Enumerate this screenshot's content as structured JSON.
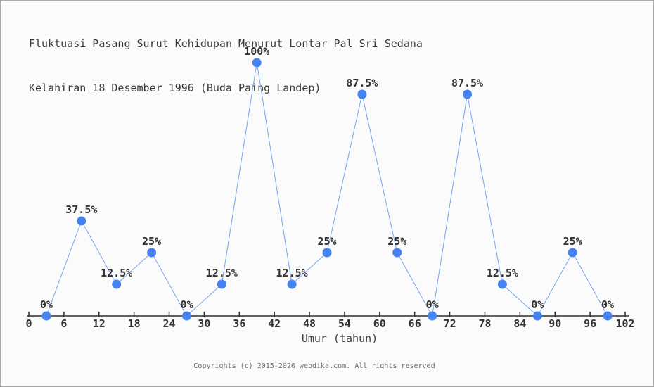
{
  "title": {
    "line1": "Fluktuasi Pasang Surut Kehidupan Menurut Lontar Pal Sri Sedana",
    "line2": "Kelahiran 18 Desember 1996 (Buda Paing Landep)"
  },
  "footer": {
    "copyright": "Copyrights (c) 2015-2026 webdika.com. All rights reserved"
  },
  "chart_data": {
    "type": "line",
    "title": "Fluktuasi Pasang Surut Kehidupan Menurut Lontar Pal Sri Sedana Kelahiran 18 Desember 1996 (Buda Paing Landep)",
    "xlabel": "Umur (tahun)",
    "ylabel": "",
    "x": [
      3,
      9,
      15,
      21,
      27,
      33,
      39,
      45,
      51,
      57,
      63,
      69,
      75,
      81,
      87,
      93,
      99
    ],
    "values": [
      0,
      37.5,
      12.5,
      25,
      0,
      12.5,
      100,
      12.5,
      25,
      87.5,
      25,
      0,
      87.5,
      12.5,
      0,
      25,
      0
    ],
    "point_labels": [
      "0%",
      "37.5%",
      "12.5%",
      "25%",
      "0%",
      "12.5%",
      "100%",
      "12.5%",
      "25%",
      "87.5%",
      "25%",
      "0%",
      "87.5%",
      "12.5%",
      "0%",
      "25%",
      "0%"
    ],
    "x_ticks": [
      0,
      6,
      12,
      18,
      24,
      30,
      36,
      42,
      48,
      54,
      60,
      66,
      72,
      78,
      84,
      90,
      96,
      102
    ],
    "xlim": [
      0,
      102
    ],
    "ylim": [
      0,
      100
    ],
    "grid": false,
    "legend": false,
    "colors": {
      "line": "#7aa3ee",
      "marker": "#4583f0",
      "axis": "#2e2e2e",
      "text": "#333333"
    }
  }
}
